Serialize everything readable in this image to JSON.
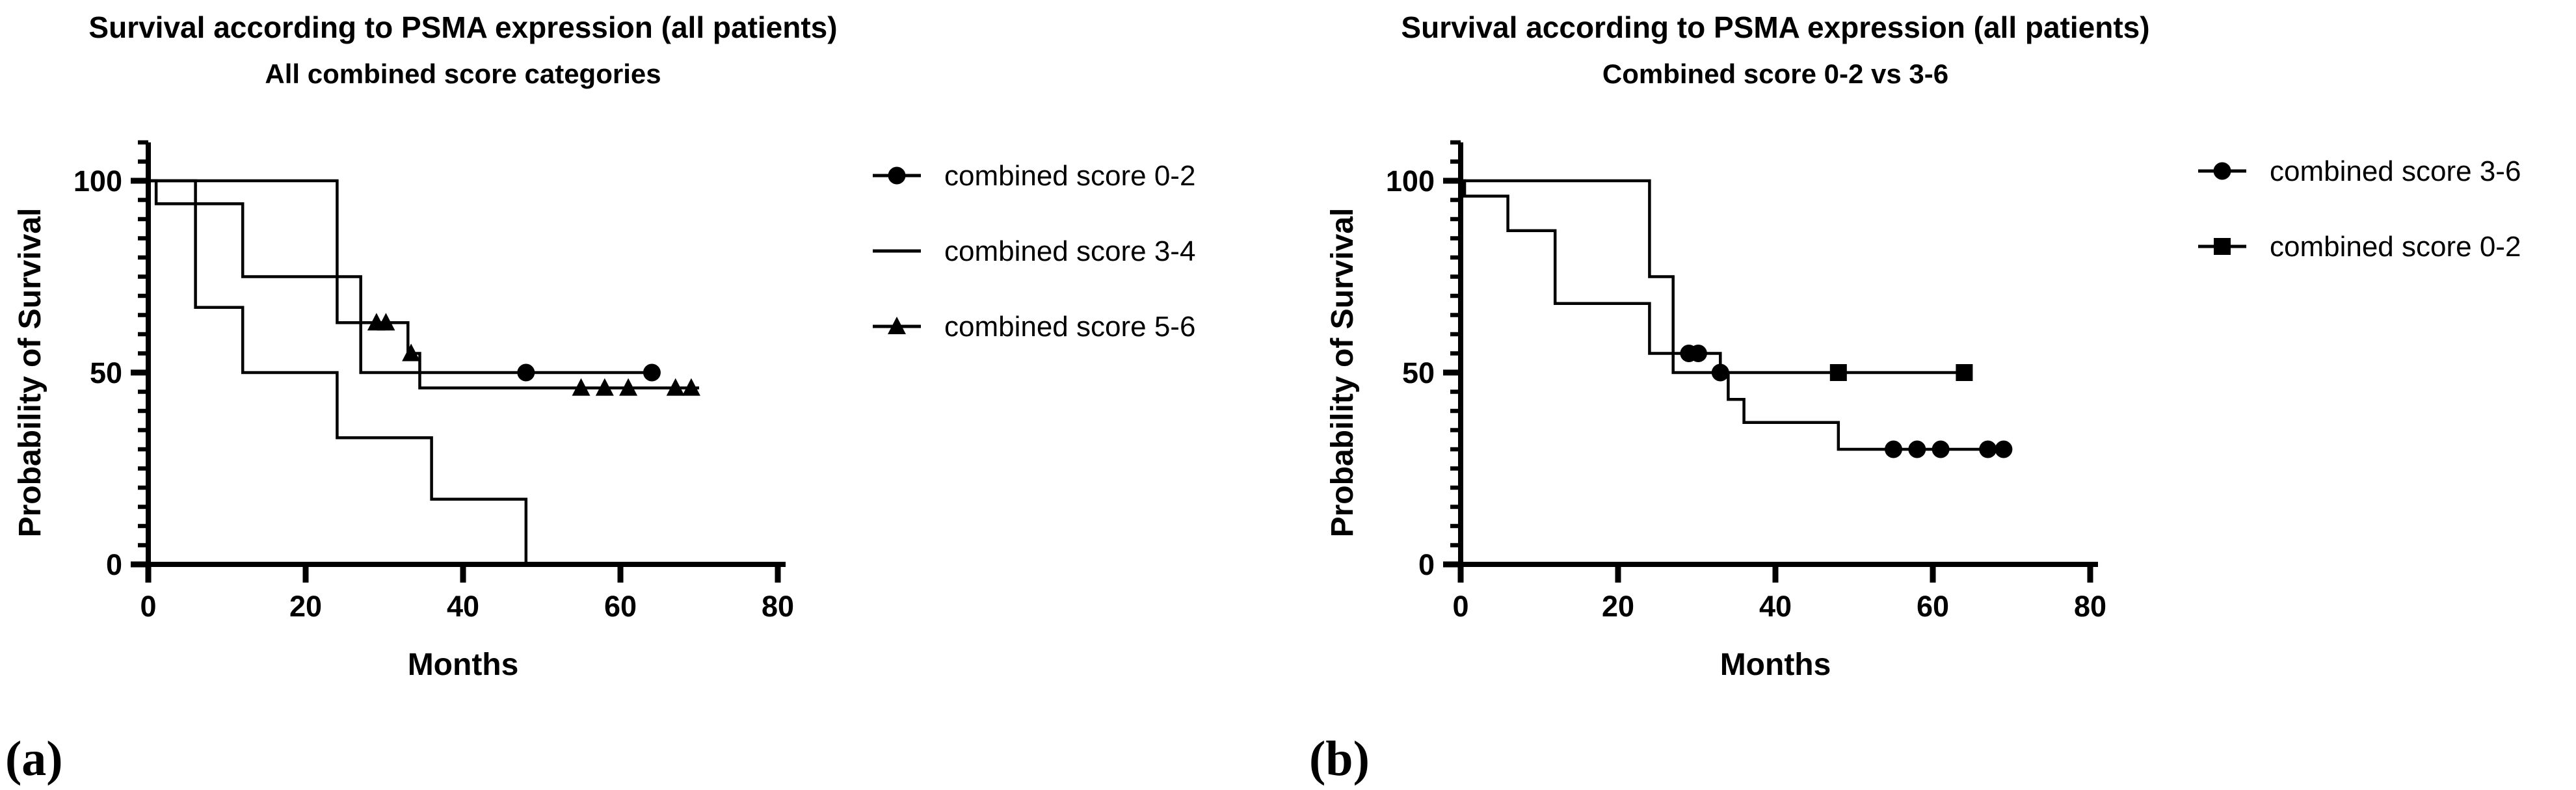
{
  "figure": {
    "background_color": "#ffffff",
    "ink_color": "#000000",
    "corner_labels": [
      "(a)",
      "(b)"
    ]
  },
  "chart_data": [
    {
      "type": "line",
      "subtype": "kaplan-meier-step",
      "panel": "a",
      "corner_label": "(a)",
      "title": "Survival according to PSMA expression (all patients)",
      "subtitle": "All combined score categories",
      "xlabel": "Months",
      "ylabel": "Probability of Survival",
      "xlim": [
        0,
        80
      ],
      "ylim": [
        0,
        100
      ],
      "xticks": [
        0,
        20,
        40,
        60,
        80
      ],
      "yticks": [
        0,
        50,
        100
      ],
      "y_minor_tick_step": 5,
      "grid": false,
      "legend_position": "right-top",
      "series": [
        {
          "name": "combined score 0-2",
          "marker": "circle",
          "steps": [
            [
              0,
              100
            ],
            [
              24,
              100
            ],
            [
              24,
              75
            ],
            [
              27,
              75
            ],
            [
              27,
              50
            ],
            [
              65,
              50
            ]
          ],
          "censored": [
            [
              48,
              50
            ],
            [
              64,
              50
            ]
          ]
        },
        {
          "name": "combined score 3-4",
          "marker": "none",
          "steps": [
            [
              0,
              100
            ],
            [
              6,
              100
            ],
            [
              6,
              67
            ],
            [
              12,
              67
            ],
            [
              12,
              50
            ],
            [
              24,
              50
            ],
            [
              24,
              33
            ],
            [
              36,
              33
            ],
            [
              36,
              17
            ],
            [
              48,
              17
            ],
            [
              48,
              0
            ]
          ],
          "censored": []
        },
        {
          "name": "combined score 5-6",
          "marker": "triangle",
          "steps": [
            [
              0,
              100
            ],
            [
              1,
              100
            ],
            [
              1,
              94
            ],
            [
              12,
              94
            ],
            [
              12,
              75
            ],
            [
              24,
              75
            ],
            [
              24,
              63
            ],
            [
              33,
              63
            ],
            [
              33,
              55
            ],
            [
              34.5,
              55
            ],
            [
              34.5,
              46
            ],
            [
              70,
              46
            ]
          ],
          "censored": [
            [
              29,
              63
            ],
            [
              30.2,
              63
            ],
            [
              33.4,
              55
            ],
            [
              55,
              46
            ],
            [
              58,
              46
            ],
            [
              61,
              46
            ],
            [
              67,
              46
            ],
            [
              69,
              46
            ]
          ]
        }
      ]
    },
    {
      "type": "line",
      "subtype": "kaplan-meier-step",
      "panel": "b",
      "corner_label": "(b)",
      "title": "Survival according to PSMA expression (all patients)",
      "subtitle": "Combined score 0-2 vs 3-6",
      "xlabel": "Months",
      "ylabel": "Probability of Survival",
      "xlim": [
        0,
        80
      ],
      "ylim": [
        0,
        100
      ],
      "xticks": [
        0,
        20,
        40,
        60,
        80
      ],
      "yticks": [
        0,
        50,
        100
      ],
      "y_minor_tick_step": 5,
      "grid": false,
      "legend_position": "right-top",
      "series": [
        {
          "name": "combined score 3-6",
          "marker": "circle",
          "steps": [
            [
              0,
              100
            ],
            [
              0.5,
              100
            ],
            [
              0.5,
              96
            ],
            [
              6,
              96
            ],
            [
              6,
              87
            ],
            [
              12,
              87
            ],
            [
              12,
              68
            ],
            [
              24,
              68
            ],
            [
              24,
              55
            ],
            [
              33,
              55
            ],
            [
              33,
              50
            ],
            [
              34,
              50
            ],
            [
              34,
              43
            ],
            [
              36,
              43
            ],
            [
              36,
              37
            ],
            [
              48,
              37
            ],
            [
              48,
              30
            ],
            [
              70,
              30
            ]
          ],
          "censored": [
            [
              29,
              55
            ],
            [
              30.2,
              55
            ],
            [
              33,
              50
            ],
            [
              55,
              30
            ],
            [
              58,
              30
            ],
            [
              61,
              30
            ],
            [
              67,
              30
            ],
            [
              69,
              30
            ]
          ]
        },
        {
          "name": "combined score 0-2",
          "marker": "square",
          "steps": [
            [
              0,
              100
            ],
            [
              24,
              100
            ],
            [
              24,
              75
            ],
            [
              27,
              75
            ],
            [
              27,
              50
            ],
            [
              65,
              50
            ]
          ],
          "censored": [
            [
              48,
              50
            ],
            [
              64,
              50
            ]
          ]
        }
      ]
    }
  ]
}
